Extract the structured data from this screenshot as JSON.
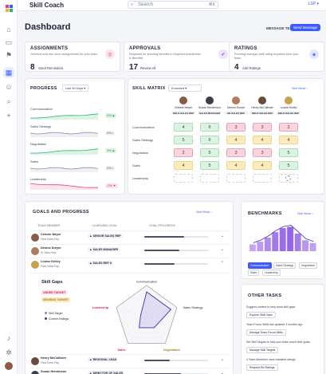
{
  "app": {
    "title": "Skill Coach",
    "search_placeholder": "Search",
    "search_shortcut": "⌘K",
    "user": "LSP ▾"
  },
  "page": {
    "title": "Dashboard",
    "message_team": "MESSAGE TEAM",
    "send_message": "Send Message"
  },
  "cards": [
    {
      "title": "ASSIGNMENTS",
      "subtitle": "Overdue and due soon assignments for your team",
      "count": "8",
      "action": "Send Reminders",
      "icon": "target-icon",
      "icon_color": "#e8417a"
    },
    {
      "title": "APPROVALS",
      "subtitle": "Requests for learning benefits in Degreed Academies & Benefits",
      "count": "17",
      "action": "Review All",
      "icon": "check-circle-icon",
      "icon_color": "#7b3fe4"
    },
    {
      "title": "RATINGS",
      "subtitle": "Pending manager skill rating requests from your team",
      "count": "4",
      "action": "Add Ratings",
      "icon": "tag-icon",
      "icon_color": "#3d5afe"
    }
  ],
  "progress": {
    "title": "PROGRESS",
    "period": "Last 30 Days ▾",
    "rows": [
      {
        "label": "Communication",
        "badge": "1% ▲",
        "trend": "up"
      },
      {
        "label": "Sales Strategy",
        "badge": "0% •",
        "trend": "flat"
      },
      {
        "label": "Negotiation",
        "badge": "1% ▲",
        "trend": "up"
      },
      {
        "label": "Sales",
        "badge": "0% •",
        "trend": "flat"
      },
      {
        "label": "Leadership",
        "badge": "-2% ▼",
        "trend": "down"
      }
    ]
  },
  "matrix": {
    "title": "SKILL MATRIX",
    "filter": "Endorsed ▾",
    "see_more": "See More ›",
    "people": [
      {
        "name": "Celeste Meyer",
        "role": "FIELD SALES REP",
        "avatar_color": "#8a5a44"
      },
      {
        "name": "Susan Henderson",
        "role": "SALES MANAGER",
        "avatar_color": "#3b3f4a"
      },
      {
        "name": "Dennis Dreyer",
        "role": "SR SALES REP",
        "avatar_color": "#b07a62"
      },
      {
        "name": "Henry McCallister",
        "role": "FIELD SALES REP",
        "avatar_color": "#6b4a3c"
      },
      {
        "name": "Louise Kinley",
        "role": "FIELD SALES REP",
        "avatar_color": "#c9a24a"
      }
    ],
    "skills": [
      {
        "name": "Communication",
        "cells": [
          {
            "v": "4",
            "c": "green"
          },
          {
            "v": "6",
            "c": "green"
          },
          {
            "v": "3",
            "c": "pink"
          },
          {
            "v": "3",
            "c": "pink"
          },
          {
            "v": "2",
            "c": "pink"
          }
        ]
      },
      {
        "name": "Sales Strategy",
        "cells": [
          {
            "v": "5",
            "c": "green"
          },
          {
            "v": "6",
            "c": "green"
          },
          {
            "v": "4",
            "c": "yellow"
          },
          {
            "v": "4",
            "c": "yellow"
          },
          {
            "v": "4",
            "c": "yellow"
          }
        ]
      },
      {
        "name": "Negotiation",
        "cells": [
          {
            "v": "2",
            "c": "pink"
          },
          {
            "v": "5",
            "c": "green"
          },
          {
            "v": "3",
            "c": "pink"
          },
          {
            "v": "3",
            "c": "pink"
          },
          {
            "v": "5",
            "c": "green"
          }
        ]
      },
      {
        "name": "Sales",
        "cells": [
          {
            "v": "4",
            "c": "yellow"
          },
          {
            "v": "5",
            "c": "green"
          },
          {
            "v": "4",
            "c": "yellow"
          },
          {
            "v": "4",
            "c": "yellow"
          },
          {
            "v": "5",
            "c": "green"
          }
        ]
      },
      {
        "name": "Leadership",
        "cells": [
          {
            "v": "",
            "c": "blank"
          },
          {
            "v": "",
            "c": "blank"
          },
          {
            "v": "",
            "c": "blank"
          },
          {
            "v": "",
            "c": "blank"
          },
          {
            "v": "",
            "c": "blank"
          }
        ]
      }
    ]
  },
  "goals": {
    "title": "GOALS AND PROGRESS",
    "see_more": "See More ›",
    "col_member": "TEAM MEMBER",
    "col_goal": "LEARNING GOAL",
    "col_progress": "GOAL PROGRESS",
    "rows": [
      {
        "name": "Celeste Meyer",
        "role": "Field Sales Rep",
        "goal": "SENIOR SALES REP",
        "progress": 0.62,
        "avatar_color": "#8a5a44"
      },
      {
        "name": "Dennis Dreyer",
        "role": "Sr Sales Rep",
        "goal": "SALES MANAGER",
        "progress": 0.55,
        "avatar_color": "#b07a62"
      },
      {
        "name": "Louise Kinley",
        "role": "Field Sales Rep",
        "goal": "SALES REP II",
        "progress": 0.48,
        "avatar_color": "#c9a24a"
      }
    ],
    "rows_bottom": [
      {
        "name": "Henry McCallister",
        "role": "Field Sales Rep",
        "goal": "REGIONAL LEAD",
        "progress": 0.4,
        "avatar_color": "#6b4a3c"
      },
      {
        "name": "Susan Henderson",
        "role": "Sales Manager",
        "goal": "DIRECTOR OF SALES",
        "progress": 0.58,
        "avatar_color": "#3b3f4a"
      }
    ],
    "skill_gaps": {
      "title": "Skill Gaps",
      "under": "UNDER TARGET",
      "nearing": "NEARING TARGET",
      "legend_target": "Skill Target",
      "legend_current": "Current Ratings",
      "axes": [
        "Communication",
        "Sales Strategy",
        "Negotiation",
        "Sales",
        "Leadership"
      ],
      "target": [
        5,
        5,
        5,
        5,
        5
      ],
      "current": [
        4,
        4,
        2,
        2,
        1
      ]
    }
  },
  "benchmarks": {
    "title": "BENCHMARKS",
    "see_more": "See More ›",
    "tabs": [
      "Communication",
      "Sales Strategy",
      "Negotiation",
      "Sales",
      "Leadership"
    ],
    "active_tab": 0,
    "bars": [
      0.25,
      0.35,
      0.5,
      0.7,
      0.85,
      0.9,
      0.65,
      0.4,
      0.3
    ]
  },
  "tasks": {
    "title": "OTHER TASKS",
    "items": [
      {
        "text": "Suggest content to help close skill gaps",
        "button": "Explore Skill Gaps"
      },
      {
        "text": "Team Focus Skills last updated 3 months ago",
        "button": "Manage Team Focus Skills"
      },
      {
        "text": "Set Skill Targets to help your team reach their goals",
        "button": "Manage Skill Targets"
      },
      {
        "text": "4 Team Members have outdated ratings",
        "button": "Request Re-Ratings"
      }
    ]
  }
}
